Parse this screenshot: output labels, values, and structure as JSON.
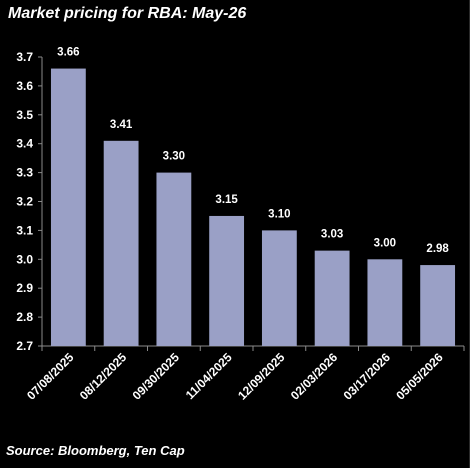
{
  "chart_data": {
    "type": "bar",
    "title": "Market pricing for RBA: May-26",
    "xlabel": "",
    "ylabel": "",
    "ylim": [
      2.7,
      3.7
    ],
    "y_ticks": [
      "2.7",
      "2.8",
      "2.9",
      "3.0",
      "3.1",
      "3.2",
      "3.3",
      "3.4",
      "3.5",
      "3.6",
      "3.7"
    ],
    "categories": [
      "07/08/2025",
      "08/12/2025",
      "09/30/2025",
      "11/04/2025",
      "12/09/2025",
      "02/03/2026",
      "03/17/2026",
      "05/05/2026"
    ],
    "values": [
      3.66,
      3.41,
      3.3,
      3.15,
      3.1,
      3.03,
      3.0,
      2.98
    ],
    "data_labels": [
      "3.66",
      "3.41",
      "3.30",
      "3.15",
      "3.10",
      "3.03",
      "3.00",
      "2.98"
    ],
    "grid": false,
    "legend": "none",
    "source": "Source: Bloomberg, Ten Cap"
  },
  "colors": {
    "background": "#000000",
    "bar": "#9aa0c6",
    "axis": "#8a8a8a",
    "text": "#ffffff"
  }
}
